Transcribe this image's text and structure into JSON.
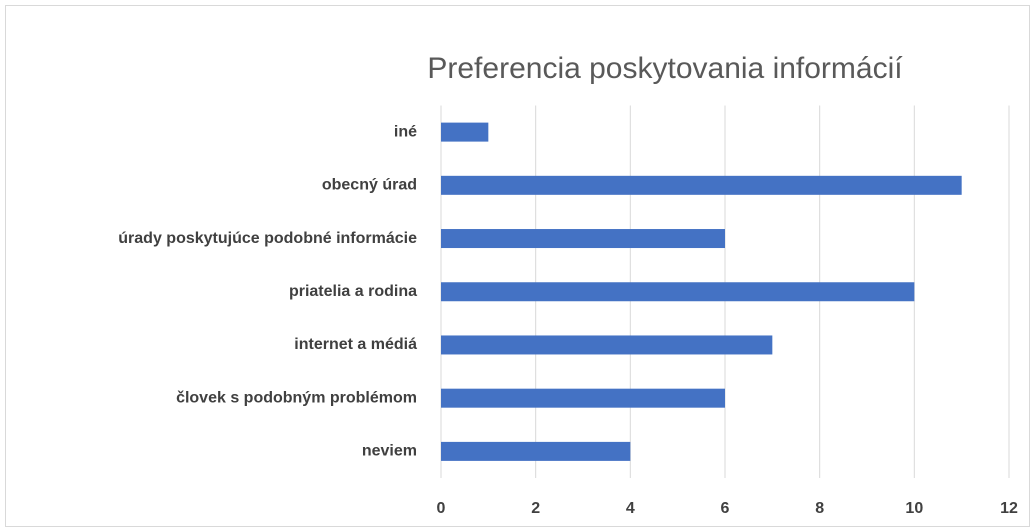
{
  "chart_data": {
    "type": "bar",
    "orientation": "horizontal",
    "title": "Preferencia poskytovania informácií",
    "categories": [
      "iné",
      "obecný úrad",
      "úrady poskytujúce podobné informácie",
      "priatelia a rodina",
      "internet a médiá",
      "človek s podobným problémom",
      "neviem"
    ],
    "values": [
      1,
      11,
      6,
      10,
      7,
      6,
      4
    ],
    "color": "#4472c4",
    "xlim": [
      0,
      12
    ],
    "xticks": [
      0,
      2,
      4,
      6,
      8,
      10,
      12
    ],
    "grid": true
  }
}
